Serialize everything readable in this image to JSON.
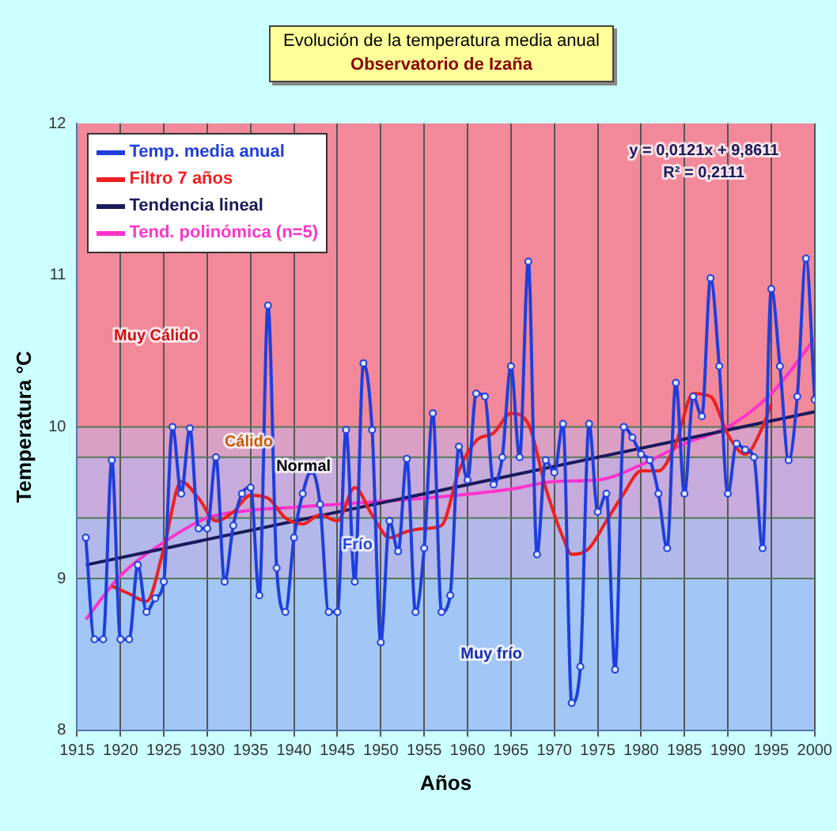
{
  "chart_data": {
    "type": "line",
    "title": "Evolución de la temperatura media anual",
    "subtitle": "Observatorio de Izaña",
    "xlabel": "Años",
    "ylabel": "Temperatura °C",
    "xlim": [
      1915,
      2000
    ],
    "xticks": [
      1915,
      1920,
      1925,
      1930,
      1935,
      1940,
      1945,
      1950,
      1955,
      1960,
      1965,
      1970,
      1975,
      1980,
      1985,
      1990,
      1995,
      2000
    ],
    "ylim": [
      8,
      12
    ],
    "yticks": [
      8,
      9,
      10,
      11,
      12
    ],
    "grid": "x",
    "legend": "top left",
    "x": [
      1916,
      1917,
      1918,
      1919,
      1920,
      1921,
      1922,
      1923,
      1924,
      1925,
      1926,
      1927,
      1928,
      1929,
      1930,
      1931,
      1932,
      1933,
      1934,
      1935,
      1936,
      1937,
      1938,
      1939,
      1940,
      1941,
      1942,
      1943,
      1944,
      1945,
      1946,
      1947,
      1948,
      1949,
      1950,
      1951,
      1952,
      1953,
      1954,
      1955,
      1956,
      1957,
      1958,
      1959,
      1960,
      1961,
      1962,
      1963,
      1964,
      1965,
      1966,
      1967,
      1968,
      1969,
      1970,
      1971,
      1972,
      1973,
      1974,
      1975,
      1976,
      1977,
      1978,
      1979,
      1980,
      1981,
      1982,
      1983,
      1984,
      1985,
      1986,
      1987,
      1988,
      1989,
      1990,
      1991,
      1992,
      1993,
      1994,
      1995,
      1996,
      1997,
      1998,
      1999,
      2000
    ],
    "series": [
      {
        "name": "Temp. media anual",
        "color": "#1f3fdd",
        "marker": "circle",
        "values": [
          9.27,
          8.6,
          8.6,
          9.78,
          8.6,
          8.6,
          9.09,
          8.78,
          8.87,
          8.98,
          10.0,
          9.56,
          9.99,
          9.33,
          9.33,
          9.8,
          8.98,
          9.35,
          9.56,
          9.6,
          8.89,
          10.8,
          9.07,
          8.78,
          9.27,
          9.56,
          9.71,
          9.49,
          8.78,
          8.78,
          9.98,
          8.98,
          10.42,
          9.98,
          8.58,
          9.38,
          9.18,
          9.79,
          8.78,
          9.2,
          10.09,
          8.78,
          8.89,
          9.87,
          9.65,
          10.22,
          10.2,
          9.62,
          9.8,
          10.4,
          9.8,
          11.09,
          9.16,
          9.78,
          9.7,
          10.02,
          8.18,
          8.42,
          10.02,
          9.44,
          9.56,
          8.4,
          10.0,
          9.93,
          9.82,
          9.78,
          9.56,
          9.2,
          10.29,
          9.56,
          10.2,
          10.07,
          10.98,
          10.4,
          9.56,
          9.89,
          9.85,
          9.8,
          9.2,
          10.91,
          10.4,
          9.78,
          10.2,
          11.11,
          10.18
        ]
      },
      {
        "name": "Filtro 7 años",
        "color": "#ee2020",
        "marker": "none",
        "x": [
          1919,
          1921,
          1923,
          1925,
          1927,
          1929,
          1931,
          1933,
          1935,
          1937,
          1939,
          1941,
          1943,
          1945,
          1947,
          1949,
          1951,
          1953,
          1955,
          1957,
          1959,
          1961,
          1963,
          1965,
          1967,
          1969,
          1971,
          1972,
          1974,
          1976,
          1978,
          1980,
          1982,
          1984,
          1986,
          1988,
          1990,
          1992,
          1994,
          1995
        ],
        "values": [
          8.95,
          8.9,
          8.85,
          9.2,
          9.64,
          9.53,
          9.38,
          9.44,
          9.55,
          9.53,
          9.4,
          9.36,
          9.42,
          9.38,
          9.6,
          9.42,
          9.27,
          9.31,
          9.33,
          9.35,
          9.71,
          9.91,
          9.96,
          10.09,
          10.02,
          9.6,
          9.27,
          9.16,
          9.2,
          9.38,
          9.56,
          9.71,
          9.71,
          9.89,
          10.22,
          10.2,
          9.95,
          9.82,
          10.0,
          10.15
        ]
      },
      {
        "name": "Tendencia lineal",
        "color": "#1a1a5a",
        "marker": "none",
        "x": [
          1916,
          2000
        ],
        "values": [
          9.09,
          10.1
        ]
      },
      {
        "name": "Tend. polinómica (n=5)",
        "color": "#ff33cc",
        "marker": "none",
        "x": [
          1916,
          1920,
          1925,
          1930,
          1935,
          1940,
          1945,
          1955,
          1965,
          1970,
          1975,
          1980,
          1985,
          1990,
          1995,
          2000
        ],
        "values": [
          8.73,
          9.02,
          9.24,
          9.4,
          9.45,
          9.47,
          9.49,
          9.53,
          9.59,
          9.64,
          9.65,
          9.75,
          9.89,
          10.0,
          10.22,
          10.58
        ]
      }
    ],
    "ref_lines": [
      {
        "axis": "y",
        "value": 10.0,
        "color": "#557755"
      },
      {
        "axis": "y",
        "value": 9.8,
        "color": "#557755"
      },
      {
        "axis": "y",
        "value": 9.4,
        "color": "#557755"
      },
      {
        "axis": "y",
        "value": 9.0,
        "color": "#557755"
      }
    ],
    "bands": [
      {
        "axis": "y",
        "from": 10.0,
        "to": 12,
        "label": "Muy Cálido",
        "color": "#f2899a"
      },
      {
        "axis": "y",
        "from": 9.8,
        "to": 10.0,
        "label": "Cálido",
        "color": "#d9a0c4"
      },
      {
        "axis": "y",
        "from": 9.4,
        "to": 9.8,
        "label": "Normal",
        "color": "#c6abdc"
      },
      {
        "axis": "y",
        "from": 9.0,
        "to": 9.4,
        "label": "Frío",
        "color": "#b2b9ea"
      },
      {
        "axis": "y",
        "from": 8,
        "to": 9.0,
        "label": "Muy frío",
        "color": "#a2c6f6"
      }
    ],
    "annotations": [
      "y = 0,0121x + 9,8611",
      "R² = 0,2111"
    ]
  }
}
